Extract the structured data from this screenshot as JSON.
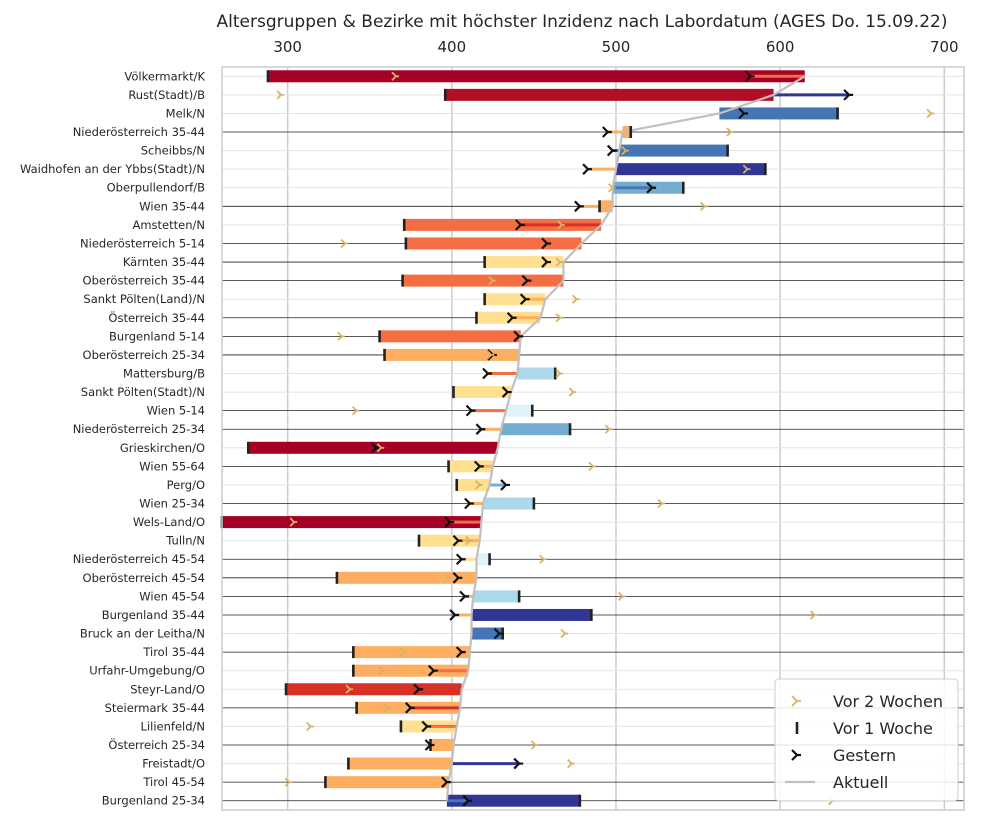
{
  "chart_data": {
    "type": "bar",
    "orientation": "horizontal",
    "title": "Altersgruppen & Bezirke mit höchster Inzidenz nach Labordatum (AGES Do. 15.09.22)",
    "xlim": [
      260,
      712
    ],
    "x_ticks": [
      300,
      400,
      500,
      600,
      700
    ],
    "x_tick_labels": [
      "300",
      "400",
      "500",
      "600",
      "700"
    ],
    "x_axis_position": "top",
    "grid": true,
    "legend_position": "bottom-right",
    "legend": [
      {
        "key": "w2",
        "label": "Vor 2 Wochen"
      },
      {
        "key": "w1",
        "label": "Vor 1 Woche"
      },
      {
        "key": "yd",
        "label": "Gestern"
      },
      {
        "key": "cur",
        "label": "Aktuell"
      }
    ],
    "colors": {
      "marker_w2": "#d8b365",
      "marker_w1": "#222222",
      "marker_yd": "#111111",
      "current_line": "#c0c0c0",
      "frame": "#cccccc",
      "grid": "#cccccc",
      "region_line": "#222222"
    },
    "categories": [
      {
        "label": "Völkermarkt/K",
        "current": 615,
        "w1": 288,
        "yd": 582,
        "w2": 366,
        "bar_color": "#a50026",
        "tail_color": "#f46d43",
        "region": false
      },
      {
        "label": "Rust(Stadt)/B",
        "current": 596,
        "w1": 396,
        "yd": 642,
        "w2": 296,
        "bar_color": "#b10f26",
        "tail_color": "#313695",
        "region": false
      },
      {
        "label": "Melk/N",
        "current": 563,
        "w1": 635,
        "yd": 578,
        "w2": 692,
        "bar_color": "#4575b4",
        "tail_color": "#4575b4",
        "region": false
      },
      {
        "label": "Niederösterreich 35-44",
        "current": 504,
        "w1": 509,
        "yd": 495,
        "w2": 570,
        "bar_color": "#fdae61",
        "tail_color": "#fdae61",
        "region": true
      },
      {
        "label": "Scheibbs/N",
        "current": 502,
        "w1": 568,
        "yd": 498,
        "w2": 506,
        "bar_color": "#4575b4",
        "tail_color": "#4575b4",
        "region": false
      },
      {
        "label": "Waidhofen an der Ybbs(Stadt)/N",
        "current": 500,
        "w1": 591,
        "yd": 483,
        "w2": 580,
        "bar_color": "#313695",
        "tail_color": "#fdae61",
        "region": false
      },
      {
        "label": "Oberpullendorf/B",
        "current": 498,
        "w1": 541,
        "yd": 522,
        "w2": 498,
        "bar_color": "#74add1",
        "tail_color": "#4575b4",
        "region": false
      },
      {
        "label": "Wien 35-44",
        "current": 498,
        "w1": 490,
        "yd": 478,
        "w2": 554,
        "bar_color": "#fdae61",
        "tail_color": "#fdae61",
        "region": true
      },
      {
        "label": "Amstetten/N",
        "current": 491,
        "w1": 371,
        "yd": 442,
        "w2": 467,
        "bar_color": "#f46d43",
        "tail_color": "#d73027",
        "region": false
      },
      {
        "label": "Niederösterreich 5-14",
        "current": 479,
        "w1": 372,
        "yd": 458,
        "w2": 335,
        "bar_color": "#f46d43",
        "tail_color": "#f46d43",
        "region": true
      },
      {
        "label": "Kärnten 35-44",
        "current": 468,
        "w1": 420,
        "yd": 458,
        "w2": 466,
        "bar_color": "#fee090",
        "tail_color": "#fee090",
        "region": true
      },
      {
        "label": "Oberösterreich 35-44",
        "current": 468,
        "w1": 370,
        "yd": 446,
        "w2": 425,
        "bar_color": "#f46d43",
        "tail_color": "#f46d43",
        "region": true
      },
      {
        "label": "Sankt Pölten(Land)/N",
        "current": 457,
        "w1": 420,
        "yd": 445,
        "w2": 476,
        "bar_color": "#fee090",
        "tail_color": "#fdae61",
        "region": false
      },
      {
        "label": "Österreich 35-44",
        "current": 454,
        "w1": 415,
        "yd": 437,
        "w2": 466,
        "bar_color": "#fee090",
        "tail_color": "#fdae61",
        "region": true
      },
      {
        "label": "Burgenland 5-14",
        "current": 442,
        "w1": 356,
        "yd": 441,
        "w2": 333,
        "bar_color": "#f46d43",
        "tail_color": "#fdae61",
        "region": true
      },
      {
        "label": "Oberösterreich 25-34",
        "current": 441,
        "w1": 359,
        "yd": 425,
        "w2": 424,
        "bar_color": "#fdae61",
        "tail_color": "#fdae61",
        "region": true
      },
      {
        "label": "Mattersburg/B",
        "current": 440,
        "w1": 463,
        "yd": 422,
        "w2": 466,
        "bar_color": "#abd9e9",
        "tail_color": "#f46d43",
        "region": false
      },
      {
        "label": "Sankt Pölten(Stadt)/N",
        "current": 436,
        "w1": 401,
        "yd": 434,
        "w2": 474,
        "bar_color": "#fee090",
        "tail_color": "#fee090",
        "region": false
      },
      {
        "label": "Wien 5-14",
        "current": 433,
        "w1": 449,
        "yd": 412,
        "w2": 342,
        "bar_color": "#e0f3f8",
        "tail_color": "#f46d43",
        "region": true
      },
      {
        "label": "Niederösterreich 25-34",
        "current": 430,
        "w1": 472,
        "yd": 418,
        "w2": 496,
        "bar_color": "#74add1",
        "tail_color": "#fdae61",
        "region": true
      },
      {
        "label": "Grieskirchen/O",
        "current": 428,
        "w1": 276,
        "yd": 354,
        "w2": 357,
        "bar_color": "#a50026",
        "tail_color": "#a50026",
        "region": false
      },
      {
        "label": "Wien 55-64",
        "current": 425,
        "w1": 398,
        "yd": 417,
        "w2": 486,
        "bar_color": "#fee090",
        "tail_color": "#fdae61",
        "region": true
      },
      {
        "label": "Perg/O",
        "current": 423,
        "w1": 403,
        "yd": 433,
        "w2": 417,
        "bar_color": "#fee090",
        "tail_color": "#74add1",
        "region": false
      },
      {
        "label": "Wien 25-34",
        "current": 419,
        "w1": 450,
        "yd": 411,
        "w2": 528,
        "bar_color": "#abd9e9",
        "tail_color": "#fdae61",
        "region": true
      },
      {
        "label": "Wels-Land/O",
        "current": 418,
        "w1": 260,
        "yd": 399,
        "w2": 304,
        "bar_color": "#a50026",
        "tail_color": "#f46d43",
        "region": false
      },
      {
        "label": "Tulln/N",
        "current": 417,
        "w1": 380,
        "yd": 404,
        "w2": 411,
        "bar_color": "#fee090",
        "tail_color": "#fdae61",
        "region": false
      },
      {
        "label": "Niederösterreich 45-54",
        "current": 415,
        "w1": 423,
        "yd": 406,
        "w2": 456,
        "bar_color": "#e0f3f8",
        "tail_color": "#fee090",
        "region": true
      },
      {
        "label": "Oberösterreich 45-54",
        "current": 415,
        "w1": 330,
        "yd": 404,
        "w2": 398,
        "bar_color": "#fdae61",
        "tail_color": "#fdae61",
        "region": true
      },
      {
        "label": "Wien 45-54",
        "current": 413,
        "w1": 441,
        "yd": 408,
        "w2": 504,
        "bar_color": "#abd9e9",
        "tail_color": "#fdae61",
        "region": true
      },
      {
        "label": "Burgenland 35-44",
        "current": 412,
        "w1": 485,
        "yd": 402,
        "w2": 621,
        "bar_color": "#313695",
        "tail_color": "#fdae61",
        "region": true
      },
      {
        "label": "Bruck an der Leitha/N",
        "current": 412,
        "w1": 431,
        "yd": 429,
        "w2": 469,
        "bar_color": "#4575b4",
        "tail_color": "#4575b4",
        "region": false
      },
      {
        "label": "Tirol 35-44",
        "current": 411,
        "w1": 340,
        "yd": 406,
        "w2": 371,
        "bar_color": "#fdae61",
        "tail_color": "#fdae61",
        "region": true
      },
      {
        "label": "Urfahr-Umgebung/O",
        "current": 410,
        "w1": 340,
        "yd": 389,
        "w2": 358,
        "bar_color": "#fdae61",
        "tail_color": "#f46d43",
        "region": false
      },
      {
        "label": "Steyr-Land/O",
        "current": 406,
        "w1": 299,
        "yd": 380,
        "w2": 338,
        "bar_color": "#d73027",
        "tail_color": "#d73027",
        "region": false
      },
      {
        "label": "Steiermark 35-44",
        "current": 405,
        "w1": 342,
        "yd": 375,
        "w2": 361,
        "bar_color": "#fdae61",
        "tail_color": "#d73027",
        "region": true
      },
      {
        "label": "Lilienfeld/N",
        "current": 403,
        "w1": 369,
        "yd": 385,
        "w2": 314,
        "bar_color": "#fee090",
        "tail_color": "#f46d43",
        "region": false
      },
      {
        "label": "Österreich 25-34",
        "current": 401,
        "w1": 387,
        "yd": 387,
        "w2": 451,
        "bar_color": "#fdae61",
        "tail_color": "#fdae61",
        "region": true
      },
      {
        "label": "Freistadt/O",
        "current": 400,
        "w1": 337,
        "yd": 441,
        "w2": 473,
        "bar_color": "#fdae61",
        "tail_color": "#313695",
        "region": false
      },
      {
        "label": "Tirol 45-54",
        "current": 398,
        "w1": 323,
        "yd": 397,
        "w2": 301,
        "bar_color": "#fdae61",
        "tail_color": "#fdae61",
        "region": true
      },
      {
        "label": "Burgenland 25-34",
        "current": 397,
        "w1": 478,
        "yd": 410,
        "w2": 632,
        "bar_color": "#313695",
        "tail_color": "#4575b4",
        "region": true
      }
    ]
  }
}
